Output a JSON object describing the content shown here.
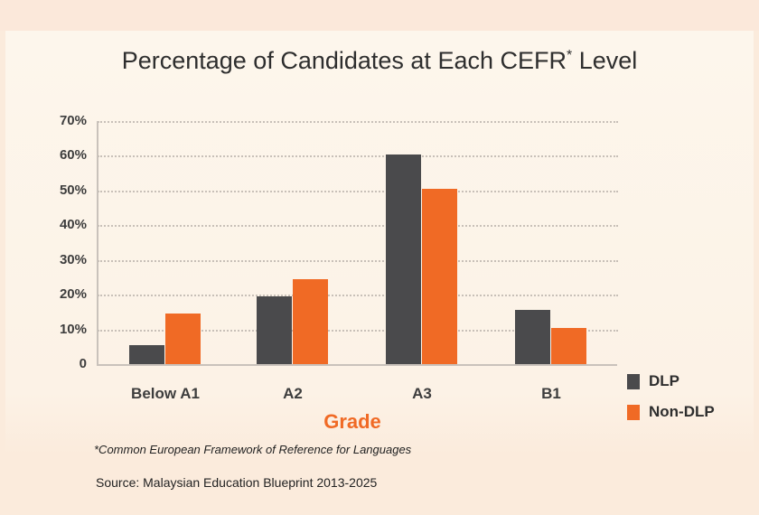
{
  "title": "Percentage of Candidates at Each CEFR",
  "title_superscript": "*",
  "title_suffix": " Level",
  "y_ticks": [
    "70%",
    "60%",
    "50%",
    "40%",
    "30%",
    "20%",
    "10%",
    "0"
  ],
  "x_axis_title": "Grade",
  "legend": [
    {
      "label": "DLP",
      "color": "#4a4a4c"
    },
    {
      "label": "Non-DLP",
      "color": "#f06a25"
    }
  ],
  "footnote": "*Common European Framework of Reference for Languages",
  "source": "Source: Malaysian Education Blueprint 2013-2025",
  "chart_data": {
    "type": "bar",
    "title": "Percentage of Candidates at Each CEFR* Level",
    "xlabel": "Grade",
    "ylabel": "",
    "categories": [
      "Below A1",
      "A2",
      "A3",
      "B1"
    ],
    "series": [
      {
        "name": "DLP",
        "color": "#4a4a4c",
        "values": [
          5.5,
          19.5,
          60.5,
          15.5
        ]
      },
      {
        "name": "Non-DLP",
        "color": "#f06a25",
        "values": [
          14.5,
          24.5,
          50.5,
          10.5
        ]
      }
    ],
    "ylim": [
      0,
      70
    ],
    "yticks": [
      0,
      10,
      20,
      30,
      40,
      50,
      60,
      70
    ],
    "grid": true,
    "legend_position": "right-bottom"
  }
}
